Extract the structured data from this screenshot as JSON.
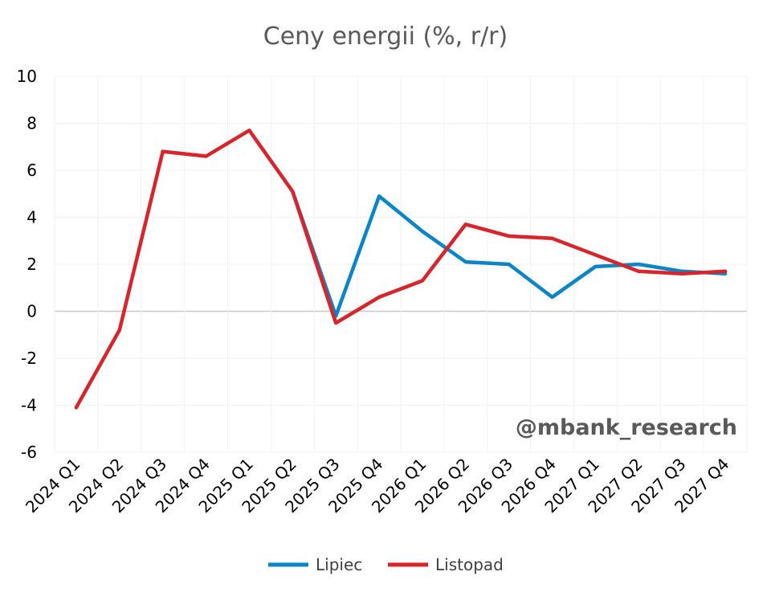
{
  "chart_data": {
    "type": "line",
    "title": "Ceny energii (%, r/r)",
    "categories": [
      "2024 Q1",
      "2024 Q2",
      "2024 Q3",
      "2024 Q4",
      "2025 Q1",
      "2025 Q2",
      "2025 Q3",
      "2025 Q4",
      "2026 Q1",
      "2026 Q2",
      "2026 Q3",
      "2026 Q4",
      "2027 Q1",
      "2027 Q2",
      "2027 Q3",
      "2027 Q4"
    ],
    "y_ticks": [
      "10",
      "8",
      "6",
      "4",
      "2",
      "0",
      "-2",
      "-4",
      "-6"
    ],
    "ylim": [
      -6,
      10
    ],
    "grid": true,
    "legend": "bottom",
    "series": [
      {
        "name": "Lipiec",
        "color": "#0a86c8",
        "values": [
          null,
          null,
          null,
          null,
          null,
          5.1,
          -0.2,
          4.9,
          3.4,
          2.1,
          2.0,
          0.6,
          1.9,
          2.0,
          1.7,
          1.6
        ]
      },
      {
        "name": "Listopad",
        "color": "#d8242a",
        "values": [
          -4.1,
          -0.8,
          6.8,
          6.6,
          7.7,
          5.1,
          -0.5,
          0.6,
          1.3,
          3.7,
          3.2,
          3.1,
          2.4,
          1.7,
          1.6,
          1.7
        ]
      }
    ]
  },
  "watermark": "@mbank_research",
  "colors": {
    "zero_line": "#c8c8c8",
    "grid": "#f2f2f2"
  }
}
